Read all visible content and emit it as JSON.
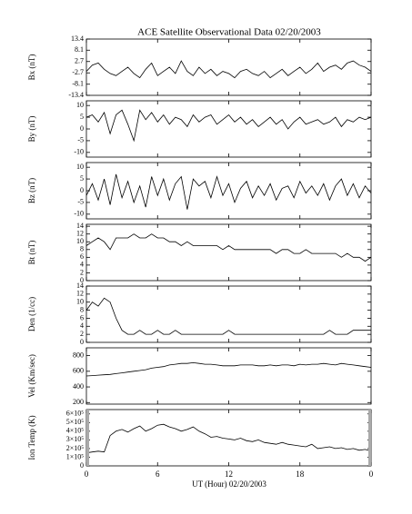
{
  "title": "ACE Satellite Observational Data   02/20/2003",
  "xlabel": "UT (Hour)   02/20/2003",
  "x": [
    0,
    0.5,
    1,
    1.5,
    2,
    2.5,
    3,
    3.5,
    4,
    4.5,
    5,
    5.5,
    6,
    6.5,
    7,
    7.5,
    8,
    8.5,
    9,
    9.5,
    10,
    10.5,
    11,
    11.5,
    12,
    12.5,
    13,
    13.5,
    14,
    14.5,
    15,
    15.5,
    16,
    16.5,
    17,
    17.5,
    18,
    18.5,
    19,
    19.5,
    20,
    20.5,
    21,
    21.5,
    22,
    22.5,
    23,
    23.5,
    24
  ],
  "xlim": [
    0,
    24
  ],
  "xticks": [
    0,
    6,
    12,
    18,
    {
      "value": 24,
      "label": "0"
    }
  ],
  "chart_data": [
    {
      "type": "line",
      "ylabel": "Bx (nT)",
      "color": "#000000",
      "ylim": [
        -13.4,
        13.4
      ],
      "yticks": [
        -13.4,
        -8.1,
        -2.7,
        2.7,
        8.1,
        13.4
      ],
      "values": [
        -2,
        1,
        2,
        -1,
        -3,
        -4,
        -2,
        0,
        -3,
        -5,
        -1,
        2,
        -4,
        -2,
        0,
        -3,
        3,
        -2,
        -4,
        0,
        -3,
        -1,
        -4,
        -2,
        -3,
        -5,
        -2,
        -1,
        -3,
        -4,
        -2,
        -5,
        -3,
        -1,
        -4,
        -2,
        0,
        -3,
        -1,
        2,
        -2,
        0,
        1,
        -1,
        2,
        3,
        1,
        0,
        -2
      ]
    },
    {
      "type": "line",
      "ylabel": "By (nT)",
      "color": "#000000",
      "ylim": [
        -12,
        12
      ],
      "yticks": [
        -10,
        -5,
        0,
        5,
        10
      ],
      "values": [
        5,
        6,
        3,
        7,
        -2,
        6,
        8,
        2,
        -5,
        8,
        4,
        7,
        3,
        6,
        2,
        5,
        4,
        1,
        6,
        3,
        5,
        6,
        2,
        4,
        6,
        3,
        5,
        2,
        4,
        1,
        3,
        5,
        2,
        4,
        0,
        3,
        5,
        2,
        3,
        4,
        2,
        3,
        5,
        1,
        4,
        3,
        5,
        4,
        5
      ]
    },
    {
      "type": "line",
      "ylabel": "Bz (nT)",
      "color": "#000000",
      "ylim": [
        -12,
        12
      ],
      "yticks": [
        -10,
        -5,
        0,
        5,
        10
      ],
      "values": [
        -2,
        3,
        -4,
        5,
        -6,
        7,
        -3,
        4,
        -5,
        2,
        -7,
        6,
        -2,
        5,
        -4,
        3,
        6,
        -8,
        5,
        2,
        4,
        -3,
        6,
        -2,
        3,
        -5,
        1,
        4,
        -3,
        2,
        -2,
        3,
        -4,
        1,
        2,
        -3,
        4,
        -1,
        2,
        -2,
        3,
        -4,
        2,
        5,
        -2,
        3,
        -3,
        2,
        -1
      ]
    },
    {
      "type": "line",
      "ylabel": "Bt (nT)",
      "color": "#000000",
      "ylim": [
        0,
        14.5
      ],
      "yticks": [
        0,
        2,
        4,
        6,
        8,
        10,
        12,
        14
      ],
      "values": [
        9,
        10,
        11,
        10,
        8,
        11,
        11,
        11,
        12,
        11,
        11,
        12,
        11,
        11,
        10,
        10,
        9,
        10,
        9,
        9,
        9,
        9,
        9,
        8,
        9,
        8,
        8,
        8,
        8,
        8,
        8,
        8,
        7,
        8,
        8,
        7,
        7,
        8,
        7,
        7,
        7,
        7,
        7,
        6,
        7,
        6,
        6,
        5,
        6
      ]
    },
    {
      "type": "line",
      "ylabel": "Den (1/cc)",
      "color": "#000000",
      "ylim": [
        0,
        14
      ],
      "yticks": [
        0,
        2,
        4,
        6,
        8,
        10,
        12,
        14
      ],
      "values": [
        8,
        10,
        9,
        11,
        10,
        6,
        3,
        2,
        2,
        3,
        2,
        2,
        3,
        2,
        2,
        3,
        2,
        2,
        2,
        2,
        2,
        2,
        2,
        2,
        3,
        2,
        2,
        2,
        2,
        2,
        2,
        2,
        2,
        2,
        2,
        2,
        2,
        2,
        2,
        2,
        2,
        3,
        2,
        2,
        2,
        3,
        3,
        3,
        3
      ]
    },
    {
      "type": "line",
      "ylabel": "Vel (Km/sec)",
      "color": "#000000",
      "ylim": [
        180,
        900
      ],
      "yticks": [
        200,
        400,
        600,
        800
      ],
      "values": [
        540,
        545,
        550,
        555,
        560,
        570,
        580,
        590,
        600,
        610,
        620,
        640,
        650,
        660,
        680,
        690,
        700,
        700,
        710,
        700,
        690,
        690,
        680,
        670,
        670,
        670,
        680,
        680,
        680,
        670,
        670,
        680,
        670,
        680,
        680,
        670,
        690,
        680,
        690,
        690,
        700,
        690,
        680,
        700,
        690,
        680,
        670,
        660,
        650
      ]
    },
    {
      "type": "line",
      "ylabel": "Ion Temp (K)",
      "color": "#000000",
      "ylim": [
        0,
        650000
      ],
      "yticks": [
        0,
        {
          "value": 100000,
          "label": "1×10⁵"
        },
        {
          "value": 200000,
          "label": "2×10⁵"
        },
        {
          "value": 300000,
          "label": "3×10⁵"
        },
        {
          "value": 400000,
          "label": "4×10⁵"
        },
        {
          "value": 500000,
          "label": "5×10⁵"
        },
        {
          "value": 600000,
          "label": "6×10⁵"
        }
      ],
      "values": [
        150000,
        160000,
        170000,
        160000,
        350000,
        400000,
        420000,
        390000,
        430000,
        460000,
        400000,
        430000,
        470000,
        480000,
        450000,
        430000,
        400000,
        420000,
        450000,
        400000,
        370000,
        330000,
        340000,
        320000,
        310000,
        300000,
        320000,
        290000,
        280000,
        300000,
        270000,
        260000,
        250000,
        270000,
        250000,
        240000,
        230000,
        220000,
        250000,
        200000,
        210000,
        220000,
        200000,
        210000,
        190000,
        200000,
        180000,
        190000,
        170000
      ]
    }
  ]
}
